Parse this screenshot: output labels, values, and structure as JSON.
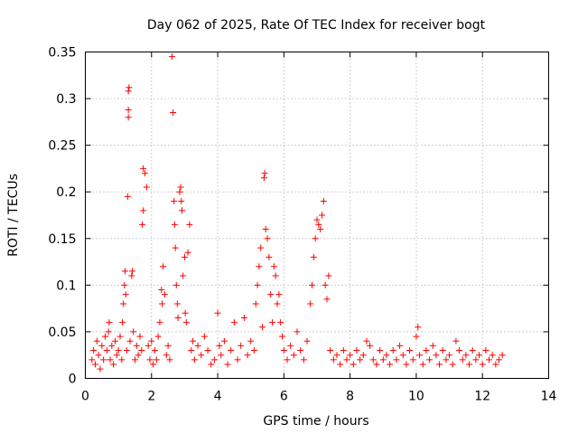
{
  "chart_data": {
    "type": "scatter",
    "title": "Day 062 of 2025, Rate Of TEC Index for receiver bogt",
    "xlabel": "GPS time / hours",
    "ylabel": "ROTI / TECUs",
    "xlim": [
      0,
      14
    ],
    "ylim": [
      0,
      0.35
    ],
    "xticks": [
      0,
      2,
      4,
      6,
      8,
      10,
      12,
      14
    ],
    "xtick_labels": [
      "0",
      "2",
      "4",
      "6",
      "8",
      "10",
      "12",
      "14"
    ],
    "yticks": [
      0,
      0.05,
      0.1,
      0.15,
      0.2,
      0.25,
      0.3,
      0.35
    ],
    "ytick_labels": [
      "0",
      "0.05",
      "0.1",
      "0.15",
      "0.2",
      "0.25",
      "0.3",
      "0.35"
    ],
    "grid": true,
    "legend": "none",
    "marker": "plus",
    "color": "#ff0000",
    "series": [
      {
        "points": [
          [
            0.2,
            0.02
          ],
          [
            0.25,
            0.03
          ],
          [
            0.3,
            0.015
          ],
          [
            0.35,
            0.04
          ],
          [
            0.4,
            0.025
          ],
          [
            0.45,
            0.01
          ],
          [
            0.5,
            0.035
          ],
          [
            0.55,
            0.02
          ],
          [
            0.6,
            0.045
          ],
          [
            0.65,
            0.03
          ],
          [
            0.7,
            0.05
          ],
          [
            0.72,
            0.06
          ],
          [
            0.75,
            0.02
          ],
          [
            0.8,
            0.035
          ],
          [
            0.85,
            0.015
          ],
          [
            0.9,
            0.04
          ],
          [
            0.95,
            0.025
          ],
          [
            1.0,
            0.03
          ],
          [
            1.05,
            0.045
          ],
          [
            1.1,
            0.02
          ],
          [
            1.12,
            0.06
          ],
          [
            1.15,
            0.08
          ],
          [
            1.18,
            0.1
          ],
          [
            1.2,
            0.115
          ],
          [
            1.22,
            0.09
          ],
          [
            1.25,
            0.03
          ],
          [
            1.28,
            0.195
          ],
          [
            1.3,
            0.28
          ],
          [
            1.3,
            0.288
          ],
          [
            1.3,
            0.308
          ],
          [
            1.32,
            0.312
          ],
          [
            1.35,
            0.04
          ],
          [
            1.4,
            0.11
          ],
          [
            1.42,
            0.115
          ],
          [
            1.45,
            0.05
          ],
          [
            1.5,
            0.02
          ],
          [
            1.55,
            0.035
          ],
          [
            1.6,
            0.025
          ],
          [
            1.65,
            0.045
          ],
          [
            1.7,
            0.03
          ],
          [
            1.72,
            0.165
          ],
          [
            1.75,
            0.18
          ],
          [
            1.75,
            0.225
          ],
          [
            1.8,
            0.22
          ],
          [
            1.85,
            0.205
          ],
          [
            1.9,
            0.035
          ],
          [
            1.95,
            0.02
          ],
          [
            2.0,
            0.04
          ],
          [
            2.05,
            0.015
          ],
          [
            2.1,
            0.03
          ],
          [
            2.15,
            0.02
          ],
          [
            2.2,
            0.045
          ],
          [
            2.25,
            0.06
          ],
          [
            2.3,
            0.095
          ],
          [
            2.32,
            0.08
          ],
          [
            2.35,
            0.12
          ],
          [
            2.4,
            0.09
          ],
          [
            2.45,
            0.025
          ],
          [
            2.5,
            0.035
          ],
          [
            2.55,
            0.02
          ],
          [
            2.62,
            0.345
          ],
          [
            2.65,
            0.285
          ],
          [
            2.68,
            0.19
          ],
          [
            2.7,
            0.165
          ],
          [
            2.72,
            0.14
          ],
          [
            2.75,
            0.1
          ],
          [
            2.78,
            0.08
          ],
          [
            2.8,
            0.065
          ],
          [
            2.85,
            0.2
          ],
          [
            2.88,
            0.205
          ],
          [
            2.9,
            0.19
          ],
          [
            2.92,
            0.18
          ],
          [
            2.95,
            0.11
          ],
          [
            3.0,
            0.13
          ],
          [
            3.02,
            0.07
          ],
          [
            3.05,
            0.06
          ],
          [
            3.1,
            0.135
          ],
          [
            3.15,
            0.165
          ],
          [
            3.2,
            0.03
          ],
          [
            3.25,
            0.04
          ],
          [
            3.3,
            0.02
          ],
          [
            3.4,
            0.035
          ],
          [
            3.5,
            0.025
          ],
          [
            3.6,
            0.045
          ],
          [
            3.7,
            0.03
          ],
          [
            3.8,
            0.015
          ],
          [
            3.9,
            0.02
          ],
          [
            4.0,
            0.07
          ],
          [
            4.05,
            0.035
          ],
          [
            4.1,
            0.025
          ],
          [
            4.2,
            0.04
          ],
          [
            4.3,
            0.015
          ],
          [
            4.4,
            0.03
          ],
          [
            4.5,
            0.06
          ],
          [
            4.6,
            0.02
          ],
          [
            4.7,
            0.035
          ],
          [
            4.8,
            0.065
          ],
          [
            4.9,
            0.025
          ],
          [
            5.0,
            0.04
          ],
          [
            5.1,
            0.03
          ],
          [
            5.15,
            0.08
          ],
          [
            5.2,
            0.1
          ],
          [
            5.25,
            0.12
          ],
          [
            5.3,
            0.14
          ],
          [
            5.35,
            0.055
          ],
          [
            5.4,
            0.215
          ],
          [
            5.42,
            0.22
          ],
          [
            5.45,
            0.16
          ],
          [
            5.5,
            0.15
          ],
          [
            5.55,
            0.13
          ],
          [
            5.6,
            0.09
          ],
          [
            5.65,
            0.06
          ],
          [
            5.7,
            0.12
          ],
          [
            5.75,
            0.11
          ],
          [
            5.8,
            0.08
          ],
          [
            5.85,
            0.09
          ],
          [
            5.9,
            0.06
          ],
          [
            5.95,
            0.045
          ],
          [
            6.0,
            0.03
          ],
          [
            6.1,
            0.02
          ],
          [
            6.2,
            0.035
          ],
          [
            6.3,
            0.025
          ],
          [
            6.4,
            0.05
          ],
          [
            6.5,
            0.03
          ],
          [
            6.6,
            0.02
          ],
          [
            6.7,
            0.04
          ],
          [
            6.8,
            0.08
          ],
          [
            6.85,
            0.1
          ],
          [
            6.9,
            0.13
          ],
          [
            6.95,
            0.15
          ],
          [
            7.0,
            0.17
          ],
          [
            7.05,
            0.165
          ],
          [
            7.1,
            0.16
          ],
          [
            7.15,
            0.175
          ],
          [
            7.2,
            0.19
          ],
          [
            7.25,
            0.1
          ],
          [
            7.3,
            0.085
          ],
          [
            7.35,
            0.11
          ],
          [
            7.4,
            0.03
          ],
          [
            7.5,
            0.02
          ],
          [
            7.6,
            0.025
          ],
          [
            7.7,
            0.015
          ],
          [
            7.8,
            0.03
          ],
          [
            7.9,
            0.02
          ],
          [
            8.0,
            0.025
          ],
          [
            8.1,
            0.015
          ],
          [
            8.2,
            0.03
          ],
          [
            8.3,
            0.02
          ],
          [
            8.4,
            0.025
          ],
          [
            8.5,
            0.04
          ],
          [
            8.6,
            0.035
          ],
          [
            8.7,
            0.02
          ],
          [
            8.8,
            0.015
          ],
          [
            8.9,
            0.03
          ],
          [
            9.0,
            0.02
          ],
          [
            9.1,
            0.025
          ],
          [
            9.2,
            0.015
          ],
          [
            9.3,
            0.03
          ],
          [
            9.4,
            0.02
          ],
          [
            9.5,
            0.035
          ],
          [
            9.6,
            0.025
          ],
          [
            9.7,
            0.015
          ],
          [
            9.8,
            0.03
          ],
          [
            9.9,
            0.02
          ],
          [
            10.0,
            0.045
          ],
          [
            10.05,
            0.055
          ],
          [
            10.1,
            0.025
          ],
          [
            10.2,
            0.015
          ],
          [
            10.3,
            0.03
          ],
          [
            10.4,
            0.02
          ],
          [
            10.5,
            0.035
          ],
          [
            10.6,
            0.025
          ],
          [
            10.7,
            0.015
          ],
          [
            10.8,
            0.03
          ],
          [
            10.9,
            0.02
          ],
          [
            11.0,
            0.025
          ],
          [
            11.1,
            0.015
          ],
          [
            11.2,
            0.04
          ],
          [
            11.3,
            0.03
          ],
          [
            11.4,
            0.02
          ],
          [
            11.5,
            0.025
          ],
          [
            11.6,
            0.015
          ],
          [
            11.7,
            0.03
          ],
          [
            11.8,
            0.02
          ],
          [
            11.9,
            0.025
          ],
          [
            12.0,
            0.015
          ],
          [
            12.1,
            0.03
          ],
          [
            12.2,
            0.02
          ],
          [
            12.3,
            0.025
          ],
          [
            12.4,
            0.015
          ],
          [
            12.5,
            0.02
          ],
          [
            12.6,
            0.025
          ]
        ]
      }
    ]
  }
}
